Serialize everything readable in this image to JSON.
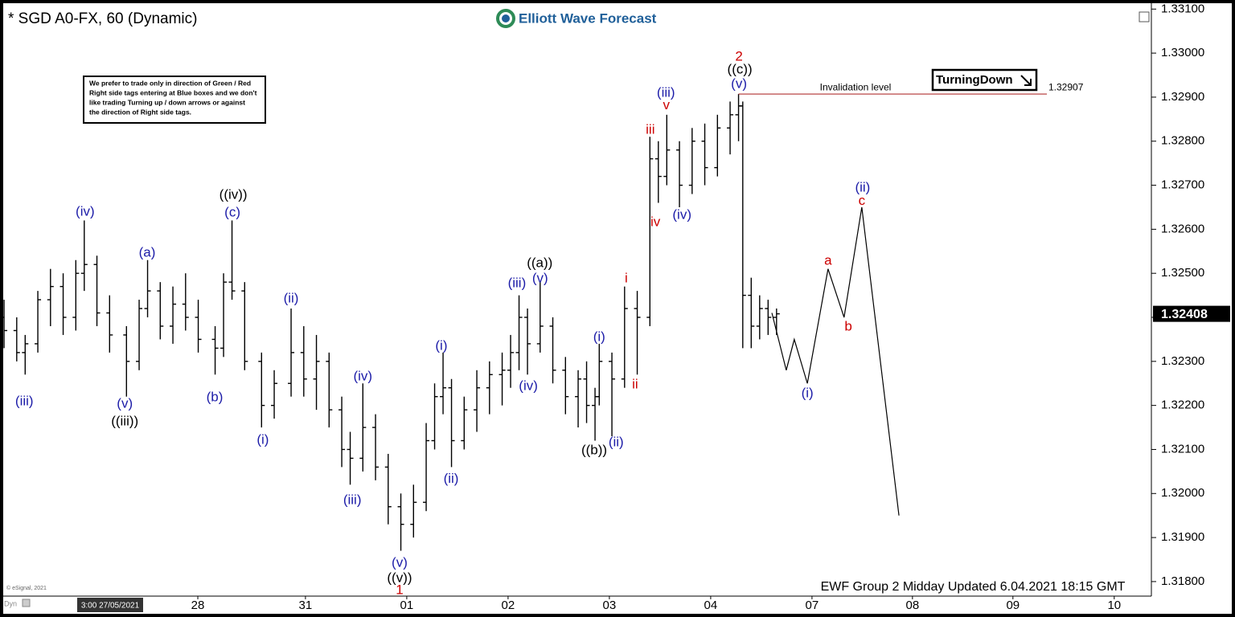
{
  "chart_data": {
    "type": "ohlc",
    "title": "* SGD A0-FX, 60 (Dynamic)",
    "brand": "Elliott Wave Forecast",
    "note": [
      "We prefer to trade only in direction of Green / Red",
      "Right side tags entering at Blue boxes and we don't",
      "like trading Turning up / down arrows or against",
      "the direction of Right side tags."
    ],
    "tag": "TurningDown",
    "footer": "EWF Group 2 Midday Updated 6.04.2021 18:15 GMT",
    "copyright": "© eSignal, 2021",
    "start_label": "3:00 27/05/2021",
    "corner_label": "Dyn",
    "color": "#000000",
    "x": [
      0,
      3,
      5,
      8,
      11,
      14,
      17,
      19,
      22,
      25,
      29,
      32,
      34,
      37,
      40,
      43,
      46,
      50,
      52,
      54,
      57,
      61,
      64,
      68,
      71,
      74,
      77,
      80,
      82,
      85,
      88,
      91,
      94,
      97,
      100,
      102,
      104,
      106,
      109,
      112,
      115,
      118,
      120,
      122,
      124,
      127,
      130,
      133,
      136,
      138,
      140,
      141,
      144,
      147,
      150,
      153,
      155,
      157,
      160,
      163,
      166,
      169,
      172,
      174,
      175,
      177,
      179,
      181,
      183
    ],
    "open": [
      1.324,
      1.3237,
      1.3232,
      1.3234,
      1.3244,
      1.3247,
      1.324,
      1.325,
      1.3252,
      1.3241,
      1.3236,
      1.323,
      1.3242,
      1.3246,
      1.3238,
      1.3243,
      1.324,
      1.3235,
      1.3233,
      1.3248,
      1.3246,
      1.323,
      1.322,
      1.3225,
      1.3232,
      1.3226,
      1.323,
      1.3219,
      1.321,
      1.3208,
      1.3215,
      1.3206,
      1.3197,
      1.3193,
      1.3198,
      1.3212,
      1.3222,
      1.3224,
      1.3212,
      1.3219,
      1.3224,
      1.3227,
      1.3228,
      1.3232,
      1.324,
      1.3234,
      1.3238,
      1.3228,
      1.3222,
      1.3226,
      1.322,
      1.3222,
      1.323,
      1.3226,
      1.3242,
      1.324,
      1.3276,
      1.3272,
      1.3278,
      1.327,
      1.328,
      1.3274,
      1.3283,
      1.3286,
      1.3288,
      1.3245,
      1.3238,
      1.3242,
      1.324
    ],
    "high": [
      1.3244,
      1.324,
      1.3236,
      1.3246,
      1.3251,
      1.325,
      1.3253,
      1.3262,
      1.3254,
      1.3245,
      1.3238,
      1.3244,
      1.3253,
      1.3248,
      1.3247,
      1.325,
      1.3244,
      1.3238,
      1.325,
      1.3262,
      1.3248,
      1.3232,
      1.3228,
      1.3242,
      1.3238,
      1.3236,
      1.3232,
      1.3222,
      1.3214,
      1.3225,
      1.3218,
      1.3209,
      1.32,
      1.3202,
      1.3216,
      1.3225,
      1.3232,
      1.3226,
      1.3222,
      1.3228,
      1.323,
      1.3232,
      1.3236,
      1.3245,
      1.3242,
      1.3248,
      1.324,
      1.3231,
      1.3228,
      1.323,
      1.3224,
      1.3234,
      1.3232,
      1.3247,
      1.3246,
      1.3281,
      1.328,
      1.3286,
      1.328,
      1.3283,
      1.3284,
      1.3286,
      1.3289,
      1.32907,
      1.3289,
      1.3249,
      1.3245,
      1.3244,
      1.3242
    ],
    "low": [
      1.3233,
      1.323,
      1.3227,
      1.3232,
      1.3238,
      1.3236,
      1.3237,
      1.3246,
      1.3238,
      1.3232,
      1.3222,
      1.3228,
      1.324,
      1.3235,
      1.3234,
      1.3237,
      1.3232,
      1.3227,
      1.3231,
      1.3244,
      1.3228,
      1.3215,
      1.3217,
      1.3222,
      1.3222,
      1.3219,
      1.3215,
      1.3206,
      1.3202,
      1.3205,
      1.3203,
      1.3193,
      1.3187,
      1.319,
      1.3196,
      1.321,
      1.3218,
      1.3206,
      1.321,
      1.3214,
      1.3218,
      1.322,
      1.3224,
      1.3228,
      1.3227,
      1.3232,
      1.3225,
      1.3218,
      1.3215,
      1.3216,
      1.3212,
      1.322,
      1.3213,
      1.3224,
      1.3227,
      1.3238,
      1.3266,
      1.327,
      1.3265,
      1.3268,
      1.327,
      1.3272,
      1.3277,
      1.328,
      1.3233,
      1.3233,
      1.3235,
      1.3236,
      1.3236
    ],
    "close": [
      1.3237,
      1.3232,
      1.3234,
      1.3244,
      1.3247,
      1.324,
      1.325,
      1.3252,
      1.3241,
      1.3236,
      1.323,
      1.3242,
      1.3246,
      1.3238,
      1.3243,
      1.324,
      1.3235,
      1.3233,
      1.3248,
      1.3246,
      1.323,
      1.322,
      1.3225,
      1.3232,
      1.3226,
      1.323,
      1.3219,
      1.321,
      1.3208,
      1.3215,
      1.3206,
      1.3197,
      1.3193,
      1.3198,
      1.3212,
      1.3222,
      1.3224,
      1.3212,
      1.3219,
      1.3224,
      1.3227,
      1.3228,
      1.3232,
      1.324,
      1.3234,
      1.3238,
      1.3228,
      1.3222,
      1.3226,
      1.322,
      1.3222,
      1.323,
      1.3226,
      1.3242,
      1.324,
      1.3276,
      1.3272,
      1.3278,
      1.327,
      1.328,
      1.3274,
      1.3283,
      1.3286,
      1.3288,
      1.3245,
      1.3238,
      1.3242,
      1.324,
      1.32408
    ],
    "projection": {
      "color": "#000000",
      "x": [
        181.9,
        185.3,
        187.2,
        190.3,
        195.2,
        199,
        203.2,
        212
      ],
      "values": [
        1.3241,
        1.3228,
        1.3235,
        1.3225,
        1.3251,
        1.324,
        1.3265,
        1.3195
      ]
    },
    "invalidation": {
      "label": "Invalidation level",
      "value": 1.32907,
      "color": "#b03030"
    },
    "annotations": [
      {
        "text": "(iii)",
        "x": 4.8,
        "y": 1.32208,
        "color": "#1c1ca8"
      },
      {
        "text": "(iv)",
        "x": 19.2,
        "y": 1.32639,
        "color": "#1c1ca8"
      },
      {
        "text": "(v)",
        "x": 28.6,
        "y": 1.32203,
        "color": "#1c1ca8"
      },
      {
        "text": "((iii))",
        "x": 28.6,
        "y": 1.32163,
        "color": "#000000"
      },
      {
        "text": "(a)",
        "x": 33.9,
        "y": 1.32546,
        "color": "#1c1ca8"
      },
      {
        "text": "(b)",
        "x": 49.9,
        "y": 1.32218,
        "color": "#1c1ca8"
      },
      {
        "text": "(c)",
        "x": 54.1,
        "y": 1.32637,
        "color": "#1c1ca8"
      },
      {
        "text": "((iv))",
        "x": 54.3,
        "y": 1.32677,
        "color": "#000000"
      },
      {
        "text": "(i)",
        "x": 61.3,
        "y": 1.32121,
        "color": "#1c1ca8"
      },
      {
        "text": "(ii)",
        "x": 68,
        "y": 1.32442,
        "color": "#1c1ca8"
      },
      {
        "text": "(iii)",
        "x": 82.5,
        "y": 1.31984,
        "color": "#1c1ca8"
      },
      {
        "text": "(iv)",
        "x": 85,
        "y": 1.32265,
        "color": "#1c1ca8"
      },
      {
        "text": "(v)",
        "x": 93.7,
        "y": 1.31842,
        "color": "#1c1ca8"
      },
      {
        "text": "((v))",
        "x": 93.7,
        "y": 1.31807,
        "color": "#000000"
      },
      {
        "text": "1",
        "x": 93.7,
        "y": 1.3178,
        "color": "#cc0000"
      },
      {
        "text": "(i)",
        "x": 103.6,
        "y": 1.32334,
        "color": "#1c1ca8"
      },
      {
        "text": "(ii)",
        "x": 105.9,
        "y": 1.32032,
        "color": "#1c1ca8"
      },
      {
        "text": "(iii)",
        "x": 121.5,
        "y": 1.32477,
        "color": "#1c1ca8"
      },
      {
        "text": "(iv)",
        "x": 124.2,
        "y": 1.32243,
        "color": "#1c1ca8"
      },
      {
        "text": "(v)",
        "x": 127,
        "y": 1.32488,
        "color": "#1c1ca8"
      },
      {
        "text": "((a))",
        "x": 126.9,
        "y": 1.32522,
        "color": "#000000"
      },
      {
        "text": "((b))",
        "x": 139.8,
        "y": 1.32097,
        "color": "#000000"
      },
      {
        "text": "(i)",
        "x": 141,
        "y": 1.32354,
        "color": "#1c1ca8"
      },
      {
        "text": "(ii)",
        "x": 145,
        "y": 1.32115,
        "color": "#1c1ca8"
      },
      {
        "text": "i",
        "x": 147.4,
        "y": 1.32488,
        "color": "#cc0000"
      },
      {
        "text": "ii",
        "x": 149.5,
        "y": 1.32247,
        "color": "#cc0000"
      },
      {
        "text": "iii",
        "x": 153.1,
        "y": 1.32825,
        "color": "#cc0000"
      },
      {
        "text": "iv",
        "x": 154.3,
        "y": 1.32615,
        "color": "#cc0000"
      },
      {
        "text": "v",
        "x": 156.9,
        "y": 1.32881,
        "color": "#cc0000"
      },
      {
        "text": "(iii)",
        "x": 156.8,
        "y": 1.32909,
        "color": "#1c1ca8"
      },
      {
        "text": "(iv)",
        "x": 160.6,
        "y": 1.32632,
        "color": "#1c1ca8"
      },
      {
        "text": "(v)",
        "x": 174.1,
        "y": 1.32929,
        "color": "#1c1ca8"
      },
      {
        "text": "((c))",
        "x": 174.3,
        "y": 1.32962,
        "color": "#000000"
      },
      {
        "text": "2",
        "x": 174.1,
        "y": 1.32991,
        "color": "#cc0000"
      },
      {
        "text": "(i)",
        "x": 190.3,
        "y": 1.32227,
        "color": "#1c1ca8"
      },
      {
        "text": "a",
        "x": 195.2,
        "y": 1.32528,
        "color": "#cc0000"
      },
      {
        "text": "b",
        "x": 200,
        "y": 1.32378,
        "color": "#cc0000"
      },
      {
        "text": "c",
        "x": 203.2,
        "y": 1.32664,
        "color": "#cc0000"
      },
      {
        "text": "(ii)",
        "x": 203.4,
        "y": 1.32694,
        "color": "#1c1ca8"
      }
    ],
    "xlim": [
      -0.2,
      271.8
    ],
    "xticks": [
      {
        "value": 45.9,
        "label": "28"
      },
      {
        "value": 71.4,
        "label": "31"
      },
      {
        "value": 95.4,
        "label": "01"
      },
      {
        "value": 119.4,
        "label": "02"
      },
      {
        "value": 143.4,
        "label": "03"
      },
      {
        "value": 167.4,
        "label": "04"
      },
      {
        "value": 191.4,
        "label": "07"
      },
      {
        "value": 215.2,
        "label": "08"
      },
      {
        "value": 239,
        "label": "09"
      },
      {
        "value": 263,
        "label": "10"
      }
    ],
    "ylim": [
      1.31767,
      1.33106
    ],
    "yticks": [
      {
        "value": 1.331,
        "label": "1.33100"
      },
      {
        "value": 1.33,
        "label": "1.33000"
      },
      {
        "value": 1.329,
        "label": "1.32900"
      },
      {
        "value": 1.328,
        "label": "1.32800"
      },
      {
        "value": 1.327,
        "label": "1.32700"
      },
      {
        "value": 1.326,
        "label": "1.32600"
      },
      {
        "value": 1.325,
        "label": "1.32500"
      },
      {
        "value": 1.324,
        "label": "1.32400"
      },
      {
        "value": 1.323,
        "label": "1.32300"
      },
      {
        "value": 1.322,
        "label": "1.32200"
      },
      {
        "value": 1.321,
        "label": "1.32100"
      },
      {
        "value": 1.32,
        "label": "1.32000"
      },
      {
        "value": 1.319,
        "label": "1.31900"
      },
      {
        "value": 1.318,
        "label": "1.31800"
      }
    ],
    "grid": false
  }
}
